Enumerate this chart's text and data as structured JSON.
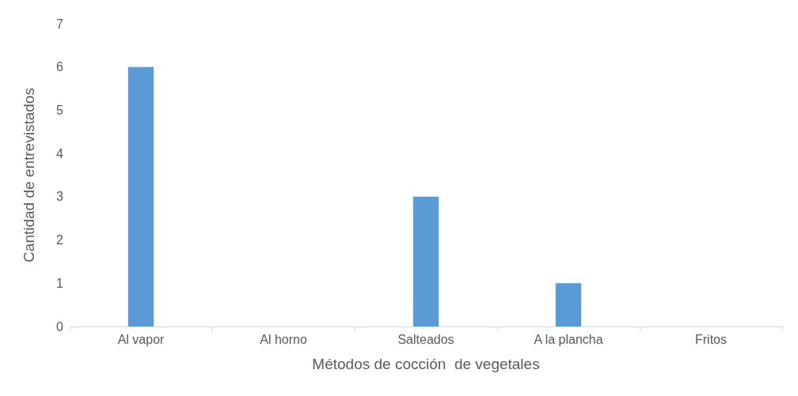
{
  "chart_data": {
    "type": "bar",
    "xlabel": "Métodos de cocción  de vegetales",
    "ylabel": "Cantidad de entrevistados",
    "categories": [
      "Al vapor",
      "Al horno",
      "Salteados",
      "A la plancha",
      "Fritos"
    ],
    "values": [
      6,
      0,
      3,
      1,
      0
    ],
    "color": "#5b9bd5",
    "ylim": [
      0,
      7
    ],
    "yticks": [
      0,
      1,
      2,
      3,
      4,
      5,
      6,
      7
    ],
    "grid": false
  }
}
